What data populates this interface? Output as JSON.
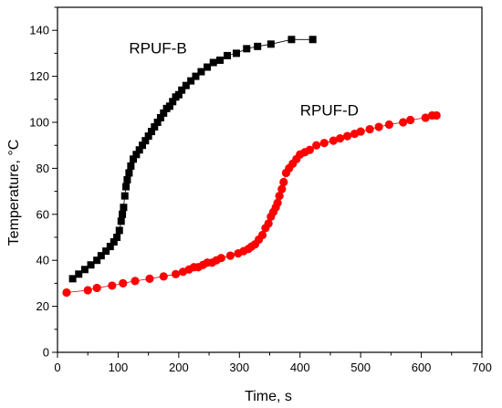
{
  "chart_data": {
    "type": "line",
    "xlabel": "Time, s",
    "ylabel": "Temperature, °C",
    "xlim": [
      0,
      700
    ],
    "ylim": [
      0,
      150
    ],
    "xticks": [
      0,
      100,
      200,
      300,
      400,
      500,
      600,
      700
    ],
    "yticks": [
      0,
      20,
      40,
      60,
      80,
      100,
      120,
      140
    ],
    "grid": false,
    "series": [
      {
        "name": "RPUF-B",
        "color": "#000000",
        "marker": "square",
        "label_anchor": [
          118,
          130
        ],
        "x": [
          25,
          35,
          45,
          55,
          65,
          72,
          80,
          87,
          93,
          98,
          102,
          105,
          107,
          109,
          111,
          113,
          115,
          118,
          121,
          125,
          130,
          135,
          140,
          145,
          150,
          155,
          160,
          165,
          170,
          175,
          180,
          185,
          190,
          195,
          200,
          205,
          212,
          220,
          228,
          237,
          247,
          257,
          268,
          280,
          295,
          312,
          330,
          352,
          386,
          421
        ],
        "y": [
          32,
          34,
          36,
          38,
          40,
          42,
          44,
          46,
          48,
          50,
          53,
          57,
          60,
          63,
          68,
          72,
          75,
          78,
          81,
          84,
          86,
          88,
          90,
          92,
          94,
          96,
          98,
          100,
          102,
          104,
          106,
          107,
          109,
          111,
          112,
          114,
          116,
          118,
          120,
          122,
          124,
          126,
          127,
          129,
          130,
          132,
          133,
          134,
          136,
          136
        ]
      },
      {
        "name": "RPUF-D",
        "color": "#ff0000",
        "marker": "circle",
        "label_anchor": [
          400,
          103
        ],
        "x": [
          15,
          50,
          65,
          90,
          108,
          128,
          152,
          175,
          195,
          207,
          217,
          225,
          232,
          240,
          247,
          255,
          262,
          270,
          285,
          298,
          307,
          315,
          320,
          326,
          332,
          338,
          343,
          348,
          352,
          356,
          360,
          363,
          366,
          370,
          373,
          377,
          382,
          388,
          394,
          400,
          408,
          416,
          427,
          440,
          455,
          466,
          478,
          490,
          500,
          515,
          530,
          547,
          570,
          582,
          607,
          618,
          625
        ],
        "y": [
          26,
          27,
          28,
          29,
          30,
          31,
          32,
          33,
          34,
          35,
          36,
          37,
          37,
          38,
          39,
          39,
          40,
          41,
          42,
          43,
          44,
          45,
          46,
          47,
          49,
          51,
          54,
          56,
          59,
          61,
          63,
          65,
          68,
          71,
          74,
          78,
          80,
          82,
          84,
          86,
          87,
          88,
          90,
          91,
          92,
          93,
          94,
          95,
          96,
          97,
          98,
          99,
          100,
          101,
          102,
          103,
          103
        ]
      }
    ]
  }
}
